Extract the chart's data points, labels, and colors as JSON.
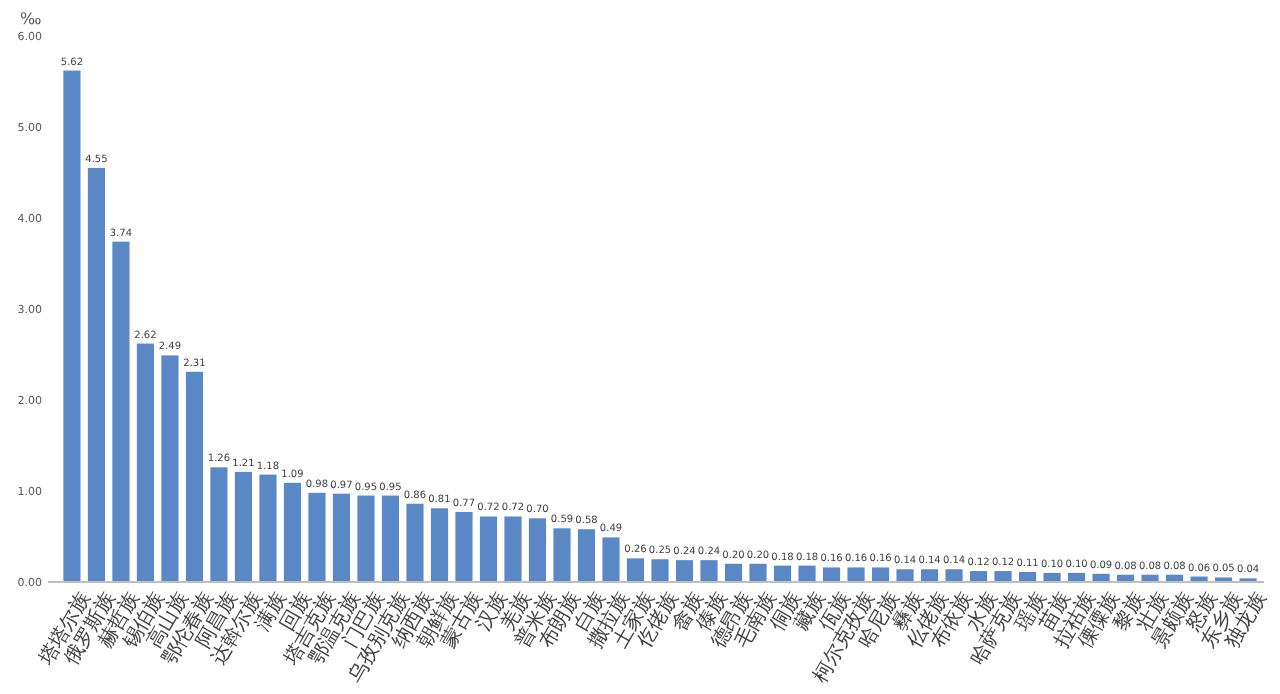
{
  "chart_data": {
    "type": "bar",
    "ylabel": "‰",
    "categories": [
      "塔塔尔族",
      "俄罗斯族",
      "赫哲族",
      "锡伯族",
      "高山族",
      "鄂伦春族",
      "阿昌族",
      "达斡尔族",
      "满族",
      "回族",
      "塔吉克族",
      "鄂温克族",
      "门巴族",
      "乌孜别克族",
      "纳西族",
      "朝鲜族",
      "蒙古族",
      "汉族",
      "羌族",
      "普米族",
      "布朗族",
      "白族",
      "撒拉族",
      "土家族",
      "仡佬族",
      "畲族",
      "傣族",
      "德昂族",
      "毛南族",
      "侗族",
      "藏族",
      "佤族",
      "柯尔克孜族",
      "哈尼族",
      "彝族",
      "仫佬族",
      "布依族",
      "水族",
      "哈萨克族",
      "瑶族",
      "苗族",
      "拉祜族",
      "傈僳族",
      "黎族",
      "壮族",
      "景颇族",
      "怒族",
      "东乡族",
      "独龙族"
    ],
    "values": [
      5.62,
      4.55,
      3.74,
      2.62,
      2.49,
      2.31,
      1.26,
      1.21,
      1.18,
      1.09,
      0.98,
      0.97,
      0.95,
      0.95,
      0.86,
      0.81,
      0.77,
      0.72,
      0.72,
      0.7,
      0.59,
      0.58,
      0.49,
      0.26,
      0.25,
      0.24,
      0.24,
      0.2,
      0.2,
      0.18,
      0.18,
      0.16,
      0.16,
      0.16,
      0.14,
      0.14,
      0.14,
      0.12,
      0.12,
      0.11,
      0.1,
      0.1,
      0.09,
      0.08,
      0.08,
      0.08,
      0.06,
      0.05,
      0.04
    ],
    "value_labels": [
      "5.62",
      "4.55",
      "3.74",
      "2.62",
      "2.49",
      "2.31",
      "1.26",
      "1.21",
      "1.18",
      "1.09",
      "0.98",
      "0.97",
      "0.95",
      "0.95",
      "0.86",
      "0.81",
      "0.77",
      "0.72",
      "0.72",
      "0.70",
      "0.59",
      "0.58",
      "0.49",
      "0.26",
      "0.25",
      "0.24",
      "0.24",
      "0.20",
      "0.20",
      "0.18",
      "0.18",
      "0.16",
      "0.16",
      "0.16",
      "0.14",
      "0.14",
      "0.14",
      "0.12",
      "0.12",
      "0.11",
      "0.10",
      "0.10",
      "0.09",
      "0.08",
      "0.08",
      "0.08",
      "0.06",
      "0.05",
      "0.04"
    ],
    "color": "#5a87c6",
    "ylim": [
      0,
      6
    ],
    "yticks": [
      {
        "value": 0,
        "label": "0.00"
      },
      {
        "value": 1,
        "label": "1.00"
      },
      {
        "value": 2,
        "label": "2.00"
      },
      {
        "value": 3,
        "label": "3.00"
      },
      {
        "value": 4,
        "label": "4.00"
      },
      {
        "value": 5,
        "label": "5.00"
      },
      {
        "value": 6,
        "label": "6.00"
      }
    ],
    "grid": false
  }
}
